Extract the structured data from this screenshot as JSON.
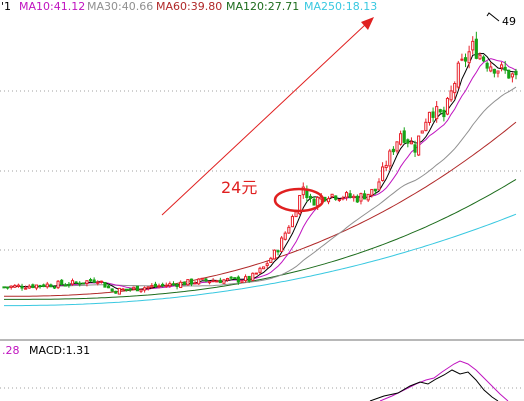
{
  "legend": {
    "ma5_prefix": "'1",
    "ma10": "MA10:41.12",
    "ma30": "MA30:40.66",
    "ma60": "MA60:39.80",
    "ma120": "MA120:27.71",
    "ma250": "MA250:18.13"
  },
  "annotation": {
    "text": "24元",
    "peak_label": "49"
  },
  "macd": {
    "left_value": ".28",
    "label": "MACD:1.31"
  },
  "colors": {
    "up": "#e8202a",
    "down": "#16a316",
    "ma5": "#000000",
    "ma10": "#c014c0",
    "ma30": "#909090",
    "ma60": "#b02828",
    "ma120": "#1c6c1c",
    "ma250": "#38c8e0",
    "grid": "#a0a0a0",
    "annotation": "#e02020"
  },
  "chart_data": {
    "type": "candlestick",
    "x": "trading sessions (unlabeled)",
    "ylim": [
      14,
      53
    ],
    "up_candles": 95,
    "down_candles": 48,
    "session_count": 143,
    "phases": [
      {
        "sessions": "1-68",
        "price_range": [
          17,
          19
        ]
      },
      {
        "sessions": "69-85",
        "price_range": [
          19,
          32
        ]
      },
      {
        "sessions": "86-103",
        "price_range": [
          29,
          31
        ]
      },
      {
        "sessions": "104-130",
        "price_range": [
          33,
          50
        ]
      },
      {
        "sessions": "131-143",
        "price_range": [
          44,
          48
        ]
      }
    ],
    "moving_averages_end": {
      "MA10": 41.12,
      "MA30": 40.66,
      "MA60": 39.8,
      "MA120": 27.71,
      "MA250": 18.13
    },
    "peak_price": 49,
    "macd": 1.31
  }
}
